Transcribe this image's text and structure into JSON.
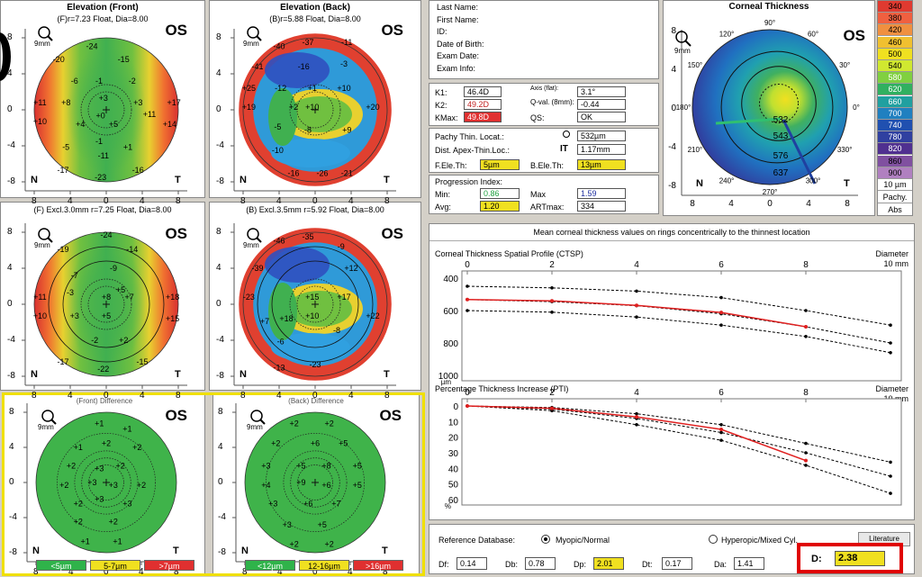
{
  "maps": [
    {
      "title": "Elevation (Front)",
      "sub": "(F)r=7.23 Float, Dia=8.00",
      "os": "OS",
      "mag": "9mm",
      "nums": [
        [
          "-24",
          -10,
          -44
        ],
        [
          "-20",
          -33,
          -35
        ],
        [
          "-15",
          12,
          -35
        ],
        [
          "-6",
          -22,
          -20
        ],
        [
          "-1",
          -5,
          -20
        ],
        [
          "-2",
          18,
          -20
        ],
        [
          "+11",
          -46,
          -5
        ],
        [
          "+8",
          -28,
          -5
        ],
        [
          "+3",
          -2,
          -8
        ],
        [
          "+3",
          22,
          -5
        ],
        [
          "+17",
          47,
          -5
        ],
        [
          "+10",
          -46,
          8
        ],
        [
          "+4",
          -18,
          10
        ],
        [
          "+0",
          -4,
          4
        ],
        [
          "+5",
          5,
          10
        ],
        [
          "+11",
          30,
          3
        ],
        [
          "+14",
          44,
          10
        ],
        [
          "-5",
          -28,
          26
        ],
        [
          "-1",
          -5,
          22
        ],
        [
          "+1",
          15,
          26
        ],
        [
          "-17",
          -30,
          42
        ],
        [
          "-11",
          -2,
          32
        ],
        [
          "-16",
          22,
          42
        ],
        [
          "-23",
          -4,
          47
        ]
      ],
      "yticks": [
        "8",
        "4",
        "0",
        "-4",
        "-8"
      ],
      "xticks": [
        "8",
        "4",
        "0",
        "4",
        "8"
      ],
      "N": "N",
      "T": "T"
    },
    {
      "title": "Elevation (Back)",
      "sub": "(B)r=5.88 Float, Dia=8.00",
      "os": "OS",
      "mag": "9mm",
      "nums": [
        [
          "-40",
          -25,
          -44
        ],
        [
          "-37",
          -5,
          -47
        ],
        [
          "-11",
          22,
          -47
        ],
        [
          "-41",
          -40,
          -30
        ],
        [
          "-16",
          -8,
          -30
        ],
        [
          "-3",
          20,
          -32
        ],
        [
          "+25",
          -46,
          -15
        ],
        [
          "-12",
          -24,
          -15
        ],
        [
          "+1",
          -2,
          -15
        ],
        [
          "+10",
          20,
          -15
        ],
        [
          "+19",
          -46,
          -2
        ],
        [
          "+2",
          -15,
          -2
        ],
        [
          "+10",
          -2,
          -2
        ],
        [
          "+20",
          40,
          -2
        ],
        [
          "-5",
          -26,
          12
        ],
        [
          "-8",
          -5,
          14
        ],
        [
          "+9",
          22,
          14
        ],
        [
          "-10",
          -26,
          28
        ],
        [
          "-16",
          -15,
          44
        ],
        [
          "-26",
          5,
          44
        ],
        [
          "-21",
          22,
          44
        ]
      ],
      "yticks": [
        "8",
        "4",
        "0",
        "-4",
        "-8"
      ],
      "xticks": [
        "8",
        "4",
        "0",
        "4",
        "8"
      ],
      "N": "N",
      "T": "T"
    },
    {
      "title": "",
      "sub": "(F) Excl.3.0mm  r=7.25 Float, Dia=8.00",
      "os": "OS",
      "mag": "9mm",
      "nums": [
        [
          "-24",
          0,
          -48
        ],
        [
          "-19",
          -30,
          -38
        ],
        [
          "-14",
          18,
          -38
        ],
        [
          "-7",
          -22,
          -20
        ],
        [
          "-9",
          5,
          -25
        ],
        [
          "-3",
          -25,
          -8
        ],
        [
          "+5",
          10,
          -10
        ],
        [
          "+11",
          -46,
          -5
        ],
        [
          "+8",
          0,
          -5
        ],
        [
          "+7",
          16,
          -5
        ],
        [
          "+18",
          46,
          -5
        ],
        [
          "+10",
          -46,
          8
        ],
        [
          "+3",
          -22,
          8
        ],
        [
          "+5",
          0,
          8
        ],
        [
          "+15",
          46,
          10
        ],
        [
          "-2",
          -8,
          25
        ],
        [
          "+2",
          12,
          25
        ],
        [
          "-17",
          -30,
          40
        ],
        [
          "-22",
          -2,
          45
        ],
        [
          "-15",
          25,
          40
        ]
      ],
      "yticks": [
        "8",
        "4",
        "0",
        "-4",
        "-8"
      ],
      "xticks": [
        "8",
        "4",
        "0",
        "4",
        "8"
      ],
      "N": "N",
      "T": "T"
    },
    {
      "title": "",
      "sub": "(B) Excl.3.5mm  r=5.92 Float, Dia=8.00",
      "os": "OS",
      "mag": "9mm",
      "nums": [
        [
          "-46",
          -25,
          -44
        ],
        [
          "-35",
          -5,
          -47
        ],
        [
          "-39",
          -40,
          -25
        ],
        [
          "-9",
          18,
          -40
        ],
        [
          "-23",
          -46,
          -5
        ],
        [
          "+12",
          25,
          -25
        ],
        [
          "+15",
          -2,
          -5
        ],
        [
          "+17",
          20,
          -5
        ],
        [
          "+22",
          40,
          8
        ],
        [
          "+18",
          -20,
          10
        ],
        [
          "+10",
          -2,
          8
        ],
        [
          "-8",
          15,
          18
        ],
        [
          "+7",
          -35,
          12
        ],
        [
          "-6",
          -24,
          26
        ],
        [
          "-23",
          0,
          42
        ],
        [
          "-13",
          -25,
          44
        ]
      ],
      "yticks": [
        "8",
        "4",
        "0",
        "-4",
        "-8"
      ],
      "xticks": [
        "8",
        "4",
        "0",
        "4",
        "8"
      ],
      "N": "N",
      "T": "T"
    },
    {
      "title": "(Front) Difference",
      "sub": "",
      "os": "OS",
      "mag": "9mm",
      "nums": [
        [
          "+1",
          -5,
          -42
        ],
        [
          "+1",
          15,
          -38
        ],
        [
          "+1",
          -20,
          -25
        ],
        [
          "+2",
          0,
          -28
        ],
        [
          "+2",
          22,
          -25
        ],
        [
          "+2",
          -25,
          -12
        ],
        [
          "+3",
          -5,
          -10
        ],
        [
          "+2",
          10,
          -12
        ],
        [
          "+2",
          -30,
          2
        ],
        [
          "+3",
          -10,
          0
        ],
        [
          "+3",
          5,
          2
        ],
        [
          "+2",
          25,
          2
        ],
        [
          "+2",
          -20,
          15
        ],
        [
          "+3",
          -5,
          12
        ],
        [
          "+3",
          15,
          15
        ],
        [
          "+2",
          -20,
          28
        ],
        [
          "+2",
          5,
          28
        ],
        [
          "+1",
          -15,
          42
        ],
        [
          "+1",
          8,
          42
        ]
      ],
      "yticks": [
        "8",
        "4",
        "0",
        "-4",
        "-8"
      ],
      "xticks": [
        "8",
        "4",
        "0",
        "4",
        "8"
      ],
      "N": "N",
      "T": "T",
      "legend": [
        [
          "<5µm",
          "#2fb34a"
        ],
        [
          "5-7µm",
          "#f0e020"
        ],
        [
          ">7µm",
          "#e03030"
        ]
      ]
    },
    {
      "title": "(Back) Difference",
      "sub": "",
      "os": "OS",
      "mag": "9mm",
      "nums": [
        [
          "+2",
          -15,
          -42
        ],
        [
          "+2",
          10,
          -42
        ],
        [
          "+2",
          -28,
          -28
        ],
        [
          "+6",
          0,
          -28
        ],
        [
          "+5",
          20,
          -28
        ],
        [
          "+3",
          -35,
          -12
        ],
        [
          "+5",
          -10,
          -12
        ],
        [
          "+8",
          8,
          -12
        ],
        [
          "+5",
          30,
          -12
        ],
        [
          "+4",
          -35,
          2
        ],
        [
          "+9",
          -10,
          0
        ],
        [
          "+6",
          8,
          2
        ],
        [
          "+5",
          30,
          2
        ],
        [
          "+3",
          -30,
          15
        ],
        [
          "+6",
          -5,
          15
        ],
        [
          "+7",
          15,
          15
        ],
        [
          "+3",
          -20,
          30
        ],
        [
          "+5",
          5,
          30
        ],
        [
          "+2",
          -15,
          44
        ],
        [
          "+2",
          10,
          44
        ]
      ],
      "yticks": [
        "8",
        "4",
        "0",
        "-4",
        "-8"
      ],
      "xticks": [
        "8",
        "4",
        "0",
        "4",
        "8"
      ],
      "N": "N",
      "T": "T",
      "legend": [
        [
          "<12µm",
          "#2fb34a"
        ],
        [
          "12-16µm",
          "#f0e020"
        ],
        [
          ">16µm",
          "#e03030"
        ]
      ]
    }
  ],
  "patient": [
    "Last Name:",
    "First Name:",
    "ID:",
    "Date of Birth:",
    "Exam Date:",
    "Exam Info:"
  ],
  "kvals": {
    "k1": {
      "label": "K1:",
      "value": "46.4D",
      "color": "#ffffff"
    },
    "k2": {
      "label": "K2:",
      "value": "49.2D",
      "color": "#ffffff"
    },
    "kmax": {
      "label": "KMax:",
      "value": "49.8D",
      "color": "#e03030"
    },
    "axis": {
      "label": "Axis (flat):",
      "value": "3.1°"
    },
    "qval": {
      "label": "Q-val. (8mm):",
      "value": "-0.44"
    },
    "qs": {
      "label": "QS:",
      "value": "OK"
    }
  },
  "pachy": {
    "thin_label": "Pachy Thin. Locat.:",
    "thin_value": "532µm",
    "dist_label": "Dist. Apex-Thin.Loc.:",
    "it": "IT",
    "dist_value": "1.17mm",
    "fele_label": "F.Ele.Th:",
    "fele_value": "5µm",
    "bele_label": "B.Ele.Th:",
    "bele_value": "13µm"
  },
  "progress": {
    "title": "Progression Index:",
    "min_label": "Min:",
    "min_value": "0.86",
    "max_label": "Max",
    "max_value": "1.59",
    "avg_label": "Avg:",
    "avg_value": "1.20",
    "art_label": "ARTmax:",
    "art_value": "334"
  },
  "corneal": {
    "title": "Corneal Thickness",
    "os": "OS",
    "mag": "9mm",
    "angles": [
      "90°",
      "60°",
      "30°",
      "0°",
      "330°",
      "300°",
      "270°",
      "240°",
      "210°",
      "180°",
      "150°",
      "120°"
    ],
    "vals": [
      "532",
      "543",
      "576",
      "637"
    ],
    "xticks": [
      "8",
      "4",
      "0",
      "4",
      "8"
    ],
    "yticks": [
      "8",
      "4",
      "0",
      "-4",
      "-8"
    ],
    "N": "N",
    "T": "T"
  },
  "scale": {
    "values": [
      "340",
      "380",
      "420",
      "460",
      "500",
      "540",
      "580",
      "620",
      "660",
      "700",
      "740",
      "780",
      "820",
      "860",
      "900"
    ],
    "unit": "10 µm",
    "label1": "Pachy.",
    "label2": "Abs",
    "colors": [
      "#e03a30",
      "#f06040",
      "#f09040",
      "#f0c030",
      "#f0e020",
      "#d0e830",
      "#80d040",
      "#30b060",
      "#20a0a0",
      "#2080c0",
      "#2050b0",
      "#3040a0",
      "#503090",
      "#8050a0",
      "#b080c0"
    ]
  },
  "mean_title": "Mean corneal thickness values on rings concentrically to the thinnest location",
  "ctsp": {
    "title": "Corneal Thickness Spatial Profile (CTSP)",
    "diameter": "Diameter",
    "unit": "10 mm",
    "xticks": [
      "0",
      "2",
      "4",
      "6",
      "8"
    ],
    "yticks": [
      "400",
      "600",
      "800",
      "1000"
    ],
    "yunit": "µm"
  },
  "pti": {
    "title": "Percentage Thickness Increase (PTI)",
    "diameter": "Diameter",
    "unit": "10 mm",
    "xticks": [
      "0",
      "2",
      "4",
      "6",
      "8"
    ],
    "yticks": [
      "0",
      "10",
      "20",
      "30",
      "40",
      "50",
      "60"
    ],
    "yunit": "%"
  },
  "chart_data": [
    {
      "type": "line",
      "title": "Corneal Thickness Spatial Profile (CTSP)",
      "xlabel": "Diameter",
      "xlim": [
        0,
        10
      ],
      "ylim": [
        400,
        1000
      ],
      "ylabel": "µm",
      "x": [
        0,
        2,
        4,
        6,
        8,
        10
      ],
      "series": [
        {
          "values": [
            450,
            460,
            480,
            520,
            600,
            690
          ]
        },
        {
          "values": [
            532,
            545,
            570,
            620,
            700,
            800
          ]
        },
        {
          "values": [
            600,
            610,
            640,
            690,
            760,
            860
          ]
        },
        {
          "values": [
            532,
            540,
            568,
            612,
            700,
            null
          ]
        }
      ]
    },
    {
      "type": "line",
      "title": "Percentage Thickness Increase (PTI)",
      "xlabel": "Diameter",
      "xlim": [
        0,
        10
      ],
      "ylim": [
        0,
        60
      ],
      "ylabel": "%",
      "x": [
        0,
        2,
        4,
        6,
        8,
        10
      ],
      "series": [
        {
          "values": [
            0,
            1,
            5,
            12,
            24,
            36
          ]
        },
        {
          "values": [
            0,
            2,
            8,
            17,
            30,
            45
          ]
        },
        {
          "values": [
            0,
            3,
            12,
            22,
            38,
            56
          ]
        },
        {
          "values": [
            0,
            1.5,
            7,
            15,
            35,
            null
          ]
        }
      ]
    }
  ],
  "bottom": {
    "ref_label": "Reference Database:",
    "myopic": "Myopic/Normal",
    "hyperopic": "Hyperopic/Mixed Cyl.",
    "literature": "Literature",
    "df_label": "Df:",
    "df": "0.14",
    "db_label": "Db:",
    "db": "0.78",
    "dp_label": "Dp:",
    "dp": "2.01",
    "dt_label": "Dt:",
    "dt": "0.17",
    "da_label": "Da:",
    "da": "1.41",
    "d_label": "D:",
    "d": "2.38"
  }
}
